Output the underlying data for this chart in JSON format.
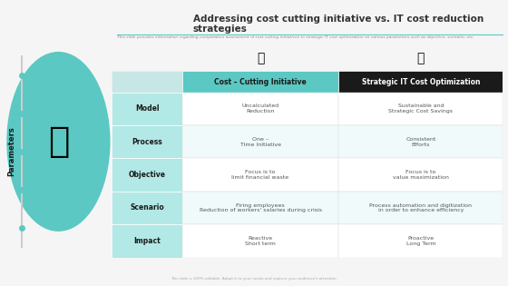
{
  "title": "Addressing cost cutting initiative vs. IT cost reduction strategies",
  "subtitle": "This slide provides information regarding comparative assessment of cost cutting initiatives to strategic IT cost optimization on various parameters such as objective, scenario, etc.",
  "footer": "This slide is 100% editable. Adapt it to your needs and capture your audience's attention.",
  "col1_header": "Cost – Cutting Initiative",
  "col2_header": "Strategic IT Cost Optimization",
  "y_label": "Parameters",
  "rows": [
    {
      "param": "Model",
      "col1": "Uncalculated\nReduction",
      "col2": "Sustainable and\nStrategic Cost Savings"
    },
    {
      "param": "Process",
      "col1": "One –\nTime Initiative",
      "col2": "Consistent\nEfforts"
    },
    {
      "param": "Objective",
      "col1": "Focus is to\nlimit financial waste",
      "col2": "Focus is to\nvalue maximization"
    },
    {
      "param": "Scenario",
      "col1": "Firing employees\nReduction of workers' salaries during crisis",
      "col2": "Process automation and digitization\nin order to enhance efficiency"
    },
    {
      "param": "Impact",
      "col1": "Reactive\nShort term",
      "col2": "Proactive\nLong Term"
    }
  ],
  "bg_color": "#f5f5f5",
  "header_col1_bg": "#5bc8c3",
  "header_col2_bg": "#1a1a1a",
  "param_col_bg": "#b2e8e5",
  "row_bg_even": "#ffffff",
  "row_bg_odd": "#f0fafa",
  "teal_color": "#5bc8c3",
  "dark_color": "#1a1a1a",
  "title_color": "#333333",
  "param_text_color": "#1a1a1a",
  "cell_text_color": "#555555",
  "header_col1_text": "#1a1a1a",
  "header_col2_text": "#ffffff",
  "left_bar_color": "#5bc8c3",
  "dot_color": "#5bc8c3"
}
